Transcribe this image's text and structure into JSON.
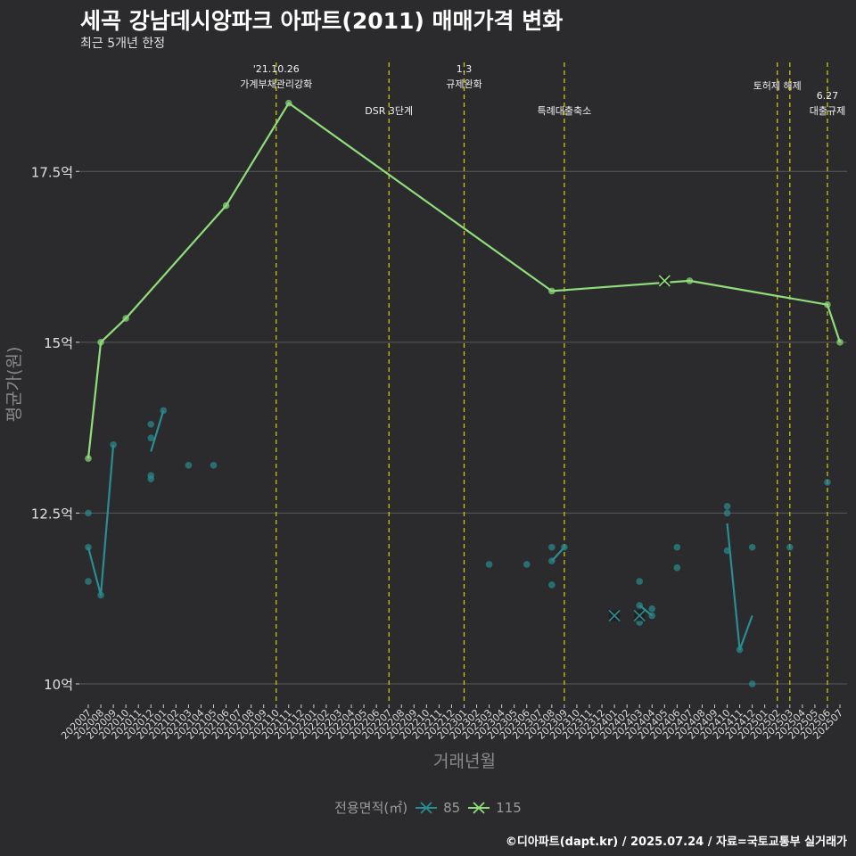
{
  "title": "세곡 강남데시앙파크 아파트(2011) 매매가격 변화",
  "subtitle": "최근 5개년 한정",
  "caption": "©디아파트(dapt.kr) / 2025.07.24 / 자료=국토교통부 실거래가",
  "legend": {
    "title": "전용면적(㎡)",
    "items": [
      {
        "label": "85",
        "color": "#2a8d8f"
      },
      {
        "label": "115",
        "color": "#8fde7a"
      }
    ]
  },
  "colors": {
    "s85": "#2a8d8f",
    "s115": "#8fde7a",
    "vline": "#d4d400",
    "grid": "#5a5a5a"
  },
  "chart_data": {
    "type": "line",
    "title": "세곡 강남데시앙파크 아파트(2011) 매매가격 변화",
    "xlabel": "거래년월",
    "ylabel": "평균가(원)",
    "ylim": [
      9.7,
      19.2
    ],
    "yticks": [
      {
        "value": 10,
        "label": "10억"
      },
      {
        "value": 12.5,
        "label": "12.5억"
      },
      {
        "value": 15,
        "label": "15억"
      },
      {
        "value": 17.5,
        "label": "17.5억"
      }
    ],
    "categories": [
      "202007",
      "202008",
      "202009",
      "202010",
      "202011",
      "202012",
      "202101",
      "202102",
      "202103",
      "202104",
      "202105",
      "202106",
      "202107",
      "202108",
      "202109",
      "202110",
      "202111",
      "202112",
      "202201",
      "202202",
      "202203",
      "202204",
      "202205",
      "202206",
      "202207",
      "202208",
      "202209",
      "202210",
      "202211",
      "202212",
      "202301",
      "202302",
      "202303",
      "202304",
      "202305",
      "202306",
      "202307",
      "202308",
      "202309",
      "202310",
      "202311",
      "202312",
      "202401",
      "202402",
      "202403",
      "202404",
      "202405",
      "202406",
      "202407",
      "202408",
      "202409",
      "202410",
      "202411",
      "202412",
      "202501",
      "202502",
      "202503",
      "202504",
      "202505",
      "202506",
      "202507"
    ],
    "series": [
      {
        "name": "85",
        "lines": [
          [
            [
              "202007",
              12.0
            ],
            [
              "202008",
              11.3
            ],
            [
              "202009",
              13.5
            ]
          ],
          [
            [
              "202012",
              13.4
            ],
            [
              "202101",
              14.0
            ]
          ],
          [
            [
              "202308",
              11.8
            ],
            [
              "202309",
              12.0
            ]
          ],
          [
            [
              "202403",
              11.15
            ],
            [
              "202404",
              11.0
            ]
          ],
          [
            [
              "202410",
              12.35
            ],
            [
              "202411",
              10.5
            ],
            [
              "202412",
              11.0
            ]
          ]
        ],
        "points": [
          [
            "202007",
            12.5
          ],
          [
            "202007",
            12.0
          ],
          [
            "202007",
            11.5
          ],
          [
            "202008",
            11.3
          ],
          [
            "202009",
            13.5
          ],
          [
            "202012",
            13.8
          ],
          [
            "202012",
            13.6
          ],
          [
            "202012",
            13.05
          ],
          [
            "202012",
            13.0
          ],
          [
            "202101",
            14.0
          ],
          [
            "202103",
            13.2
          ],
          [
            "202105",
            13.2
          ],
          [
            "202303",
            11.75
          ],
          [
            "202306",
            11.75
          ],
          [
            "202308",
            12.0
          ],
          [
            "202308",
            11.8
          ],
          [
            "202308",
            11.45
          ],
          [
            "202309",
            12.0
          ],
          [
            "202403",
            11.5
          ],
          [
            "202403",
            11.15
          ],
          [
            "202403",
            10.9
          ],
          [
            "202404",
            11.1
          ],
          [
            "202404",
            11.0
          ],
          [
            "202406",
            12.0
          ],
          [
            "202406",
            11.7
          ],
          [
            "202410",
            12.6
          ],
          [
            "202410",
            12.5
          ],
          [
            "202410",
            11.95
          ],
          [
            "202411",
            10.5
          ],
          [
            "202412",
            12.0
          ],
          [
            "202412",
            10.0
          ],
          [
            "202503",
            12.0
          ],
          [
            "202506",
            12.95
          ]
        ],
        "crosses": [
          [
            "202401",
            11.0
          ],
          [
            "202403",
            11.0
          ]
        ]
      },
      {
        "name": "115",
        "lines": [
          [
            [
              "202007",
              13.3
            ],
            [
              "202008",
              15.0
            ],
            [
              "202010",
              15.35
            ],
            [
              "202106",
              17.0
            ],
            [
              "202111",
              18.5
            ],
            [
              "202308",
              15.75
            ],
            [
              "202407",
              15.9
            ],
            [
              "202506",
              15.55
            ],
            [
              "202507",
              15.0
            ]
          ]
        ],
        "points": [
          [
            "202007",
            13.3
          ],
          [
            "202008",
            15.0
          ],
          [
            "202010",
            15.35
          ],
          [
            "202106",
            17.0
          ],
          [
            "202111",
            18.5
          ],
          [
            "202308",
            15.75
          ],
          [
            "202407",
            15.9
          ],
          [
            "202506",
            15.55
          ],
          [
            "202507",
            15.0
          ]
        ],
        "crosses": [
          [
            "202405",
            15.9
          ]
        ]
      }
    ],
    "events": [
      {
        "x": 15.0,
        "lines": [
          "'21.10.26",
          "가계부채관리강화"
        ],
        "level": 1
      },
      {
        "x": 24.0,
        "lines": [
          "DSR 3단계"
        ],
        "level": 2
      },
      {
        "x": 30.0,
        "lines": [
          "1.3",
          "규제완화"
        ],
        "level": 1
      },
      {
        "x": 38.0,
        "lines": [
          "특례대출축소"
        ],
        "level": 2
      },
      {
        "x": 55.0,
        "lines": [
          "토허제 해제"
        ],
        "level": 0
      },
      {
        "x": 56.0,
        "lines": [],
        "level": 0
      },
      {
        "x": 59.0,
        "lines": [
          "6.27",
          "대출규제"
        ],
        "level": 3
      }
    ]
  }
}
